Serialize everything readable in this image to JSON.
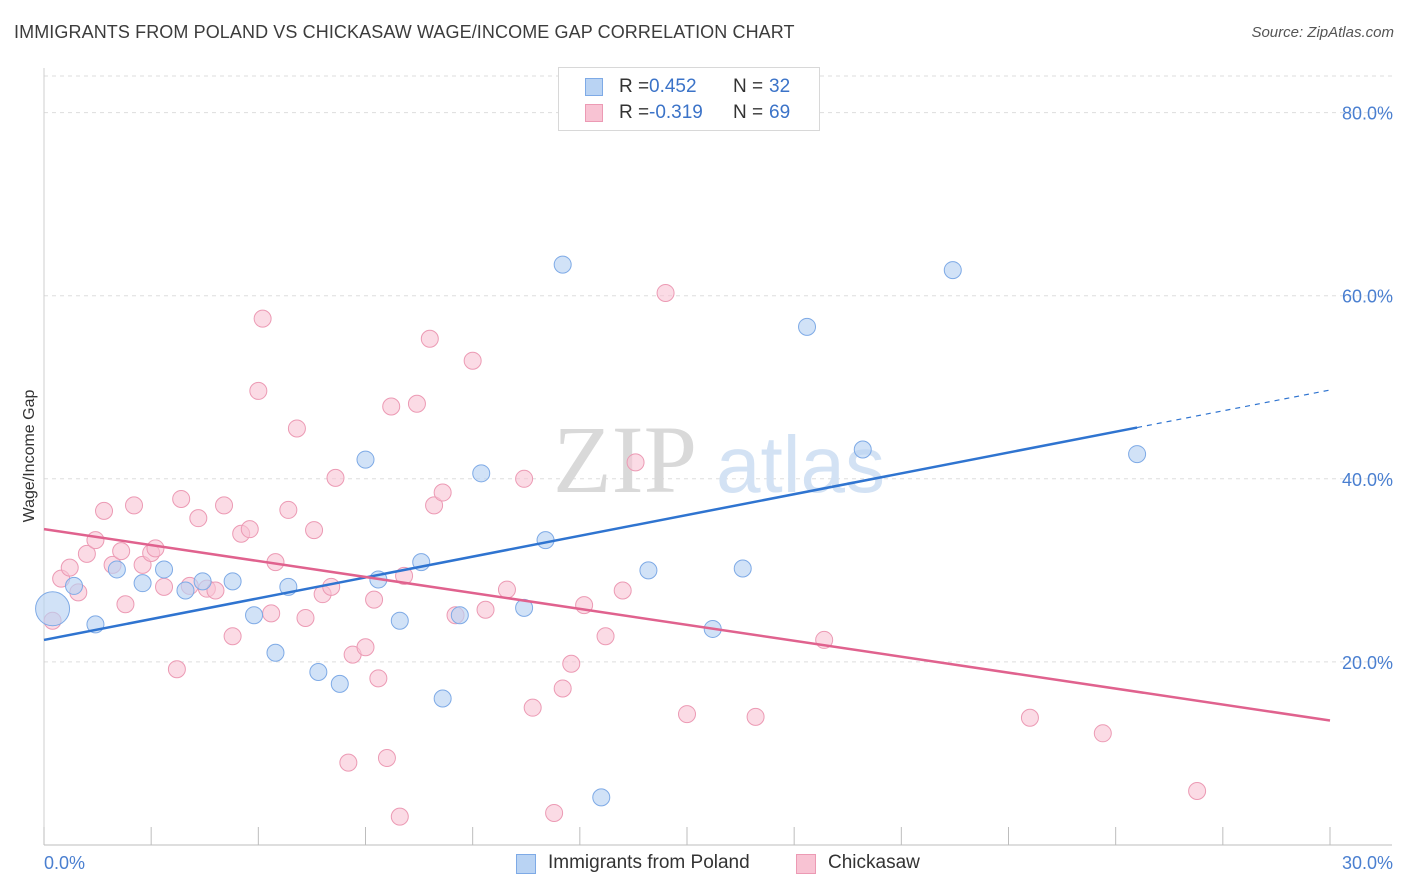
{
  "title": "IMMIGRANTS FROM POLAND VS CHICKASAW WAGE/INCOME GAP CORRELATION CHART",
  "source": "Source: ZipAtlas.com",
  "watermark": {
    "zip": "ZIP",
    "atlas": "atlas"
  },
  "colors": {
    "blue_fill": "#b9d3f3",
    "blue_stroke": "#7eaae6",
    "blue_line": "#2f74d0",
    "pink_fill": "#f8c3d3",
    "pink_stroke": "#ec9ab4",
    "pink_line": "#e0628e",
    "grid": "#dddddd",
    "tick_text": "#4a7fd0"
  },
  "legend": {
    "series1": {
      "r_label": "R =",
      "r_value": "0.452",
      "n_label": "N =",
      "n_value": "32"
    },
    "series2": {
      "r_label": "R =",
      "r_value": "-0.319",
      "n_label": "N =",
      "n_value": "69"
    }
  },
  "bottom_legend": {
    "series1": "Immigrants from Poland",
    "series2": "Chickasaw"
  },
  "chart_data": {
    "type": "scatter",
    "title": "IMMIGRANTS FROM POLAND VS CHICKASAW WAGE/INCOME GAP CORRELATION CHART",
    "xlabel": "",
    "ylabel": "Wage/Income Gap",
    "xlim": [
      0,
      30
    ],
    "ylim": [
      0,
      84
    ],
    "x_tick_labels": [
      "0.0%",
      "30.0%"
    ],
    "y_ticks": [
      20,
      40,
      60,
      80
    ],
    "y_tick_labels": [
      "20.0%",
      "40.0%",
      "60.0%",
      "80.0%"
    ],
    "grid": true,
    "legend_placement": "top-center",
    "series": [
      {
        "name": "Immigrants from Poland",
        "color": "#b9d3f3",
        "trend": {
          "x": [
            0,
            25.5
          ],
          "y": [
            22.4,
            45.6
          ],
          "extended_to": [
            30,
            49.7
          ]
        },
        "points": [
          {
            "x": 0.2,
            "y": 25.8,
            "big": true
          },
          {
            "x": 0.7,
            "y": 28.3
          },
          {
            "x": 1.2,
            "y": 24.1
          },
          {
            "x": 1.7,
            "y": 30.1
          },
          {
            "x": 2.3,
            "y": 28.6
          },
          {
            "x": 2.8,
            "y": 30.1
          },
          {
            "x": 3.3,
            "y": 27.8
          },
          {
            "x": 3.7,
            "y": 28.8
          },
          {
            "x": 4.4,
            "y": 28.8
          },
          {
            "x": 4.9,
            "y": 25.1
          },
          {
            "x": 5.4,
            "y": 21.0
          },
          {
            "x": 5.7,
            "y": 28.2
          },
          {
            "x": 6.4,
            "y": 18.9
          },
          {
            "x": 6.9,
            "y": 17.6
          },
          {
            "x": 7.5,
            "y": 42.1
          },
          {
            "x": 7.8,
            "y": 29.0
          },
          {
            "x": 8.3,
            "y": 24.5
          },
          {
            "x": 8.8,
            "y": 30.9
          },
          {
            "x": 9.3,
            "y": 16.0
          },
          {
            "x": 9.7,
            "y": 25.1
          },
          {
            "x": 10.2,
            "y": 40.6
          },
          {
            "x": 11.2,
            "y": 25.9
          },
          {
            "x": 11.7,
            "y": 33.3
          },
          {
            "x": 12.1,
            "y": 63.4
          },
          {
            "x": 13.0,
            "y": 5.2
          },
          {
            "x": 14.1,
            "y": 30.0
          },
          {
            "x": 15.6,
            "y": 23.6
          },
          {
            "x": 16.3,
            "y": 30.2
          },
          {
            "x": 17.8,
            "y": 56.6
          },
          {
            "x": 19.1,
            "y": 43.2
          },
          {
            "x": 21.2,
            "y": 62.8
          },
          {
            "x": 25.5,
            "y": 42.7
          }
        ]
      },
      {
        "name": "Chickasaw",
        "color": "#f8c3d3",
        "trend": {
          "x": [
            0,
            30
          ],
          "y": [
            34.5,
            13.6
          ]
        },
        "points": [
          {
            "x": 0.2,
            "y": 24.5
          },
          {
            "x": 0.4,
            "y": 29.1
          },
          {
            "x": 0.6,
            "y": 30.3
          },
          {
            "x": 0.8,
            "y": 27.6
          },
          {
            "x": 1.0,
            "y": 31.8
          },
          {
            "x": 1.2,
            "y": 33.3
          },
          {
            "x": 1.4,
            "y": 36.5
          },
          {
            "x": 1.6,
            "y": 30.6
          },
          {
            "x": 1.8,
            "y": 32.1
          },
          {
            "x": 1.9,
            "y": 26.3
          },
          {
            "x": 2.1,
            "y": 37.1
          },
          {
            "x": 2.3,
            "y": 30.6
          },
          {
            "x": 2.5,
            "y": 31.9
          },
          {
            "x": 2.6,
            "y": 32.4
          },
          {
            "x": 2.8,
            "y": 28.2
          },
          {
            "x": 3.1,
            "y": 19.2
          },
          {
            "x": 3.2,
            "y": 37.8
          },
          {
            "x": 3.4,
            "y": 28.3
          },
          {
            "x": 3.6,
            "y": 35.7
          },
          {
            "x": 3.8,
            "y": 28.0
          },
          {
            "x": 4.0,
            "y": 27.8
          },
          {
            "x": 4.2,
            "y": 37.1
          },
          {
            "x": 4.4,
            "y": 22.8
          },
          {
            "x": 4.6,
            "y": 34.0
          },
          {
            "x": 4.8,
            "y": 34.5
          },
          {
            "x": 5.0,
            "y": 49.6
          },
          {
            "x": 5.1,
            "y": 57.5
          },
          {
            "x": 5.3,
            "y": 25.3
          },
          {
            "x": 5.4,
            "y": 30.9
          },
          {
            "x": 5.7,
            "y": 36.6
          },
          {
            "x": 5.9,
            "y": 45.5
          },
          {
            "x": 6.1,
            "y": 24.8
          },
          {
            "x": 6.3,
            "y": 34.4
          },
          {
            "x": 6.5,
            "y": 27.4
          },
          {
            "x": 6.7,
            "y": 28.2
          },
          {
            "x": 6.8,
            "y": 40.1
          },
          {
            "x": 7.1,
            "y": 9.0
          },
          {
            "x": 7.2,
            "y": 20.8
          },
          {
            "x": 7.5,
            "y": 21.6
          },
          {
            "x": 7.7,
            "y": 26.8
          },
          {
            "x": 7.8,
            "y": 18.2
          },
          {
            "x": 8.0,
            "y": 9.5
          },
          {
            "x": 8.1,
            "y": 47.9
          },
          {
            "x": 8.3,
            "y": 3.1
          },
          {
            "x": 8.4,
            "y": 29.4
          },
          {
            "x": 8.7,
            "y": 48.2
          },
          {
            "x": 9.0,
            "y": 55.3
          },
          {
            "x": 9.1,
            "y": 37.1
          },
          {
            "x": 9.3,
            "y": 38.5
          },
          {
            "x": 9.6,
            "y": 25.1
          },
          {
            "x": 10.0,
            "y": 52.9
          },
          {
            "x": 10.3,
            "y": 25.7
          },
          {
            "x": 10.8,
            "y": 27.9
          },
          {
            "x": 11.2,
            "y": 40.0
          },
          {
            "x": 11.4,
            "y": 15.0
          },
          {
            "x": 11.9,
            "y": 3.5
          },
          {
            "x": 12.1,
            "y": 17.1
          },
          {
            "x": 12.3,
            "y": 19.8
          },
          {
            "x": 12.6,
            "y": 26.2
          },
          {
            "x": 13.1,
            "y": 22.8
          },
          {
            "x": 13.5,
            "y": 27.8
          },
          {
            "x": 13.8,
            "y": 41.8
          },
          {
            "x": 14.5,
            "y": 60.3
          },
          {
            "x": 15.0,
            "y": 14.3
          },
          {
            "x": 16.6,
            "y": 14.0
          },
          {
            "x": 18.2,
            "y": 22.4
          },
          {
            "x": 23.0,
            "y": 13.9
          },
          {
            "x": 24.7,
            "y": 12.2
          },
          {
            "x": 26.9,
            "y": 5.9
          }
        ]
      }
    ]
  }
}
